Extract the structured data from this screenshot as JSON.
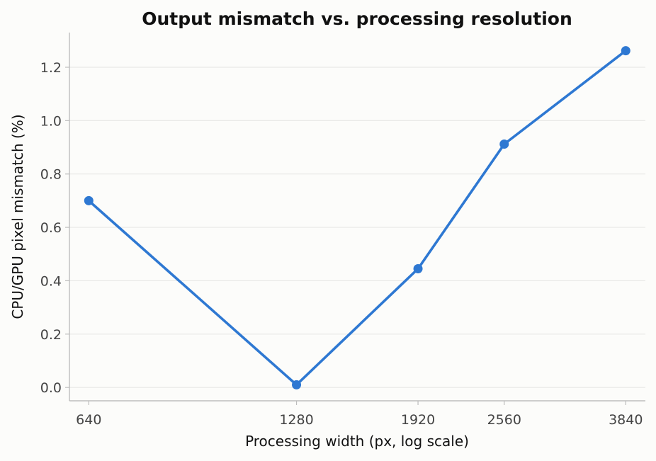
{
  "chart_data": {
    "type": "line",
    "title": "Output mismatch vs. processing resolution",
    "xlabel": "Processing width (px, log scale)",
    "ylabel": "CPU/GPU pixel mismatch (%)",
    "xscale": "log",
    "xlim": [
      600,
      4100
    ],
    "ylim": [
      -0.05,
      1.33
    ],
    "grid": "y",
    "x_ticks": [
      640,
      1280,
      1920,
      2560,
      3840
    ],
    "y_ticks": [
      0.0,
      0.2,
      0.4,
      0.6,
      0.8,
      1.0,
      1.2
    ],
    "series": [
      {
        "x": [
          640,
          1280,
          1920,
          2560,
          3840
        ],
        "values": [
          0.7,
          0.01,
          0.445,
          0.912,
          1.262
        ],
        "color": "#2e78d2"
      }
    ]
  }
}
